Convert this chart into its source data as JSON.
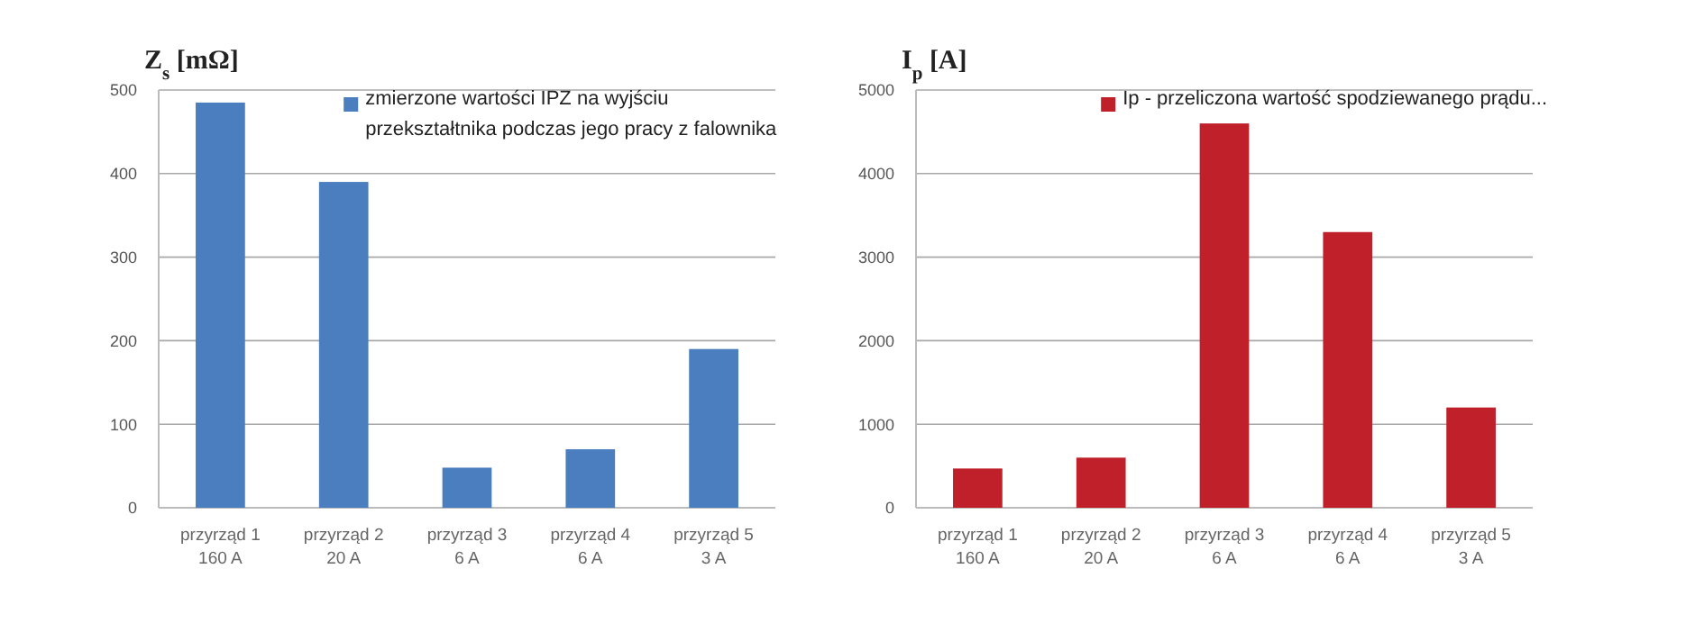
{
  "chart_data": [
    {
      "type": "bar",
      "ylabel": "Z$_{s}$ [mΩ]",
      "categories": [
        "przyrząd 1\n160 A",
        "przyrząd 2\n20 A",
        "przyrząd 3\n6 A",
        "przyrząd 4\n6 A",
        "przyrząd 5\n3 A"
      ],
      "series": [
        {
          "name": "zmierzone wartości IPZ na wyjściu przekształtnika podczas jego pracy z falownika",
          "color": "#4a7ebf",
          "values": [
            485,
            390,
            48,
            70,
            190
          ]
        }
      ],
      "ylim": [
        0,
        500
      ],
      "yticks": [
        0,
        100,
        200,
        300,
        400,
        500
      ],
      "grid": "y",
      "legend": "top right"
    },
    {
      "type": "bar",
      "ylabel": "I$_{p}$ [A]",
      "categories": [
        "przyrząd 1\n160 A",
        "przyrząd 2\n20 A",
        "przyrząd 3\n6 A",
        "przyrząd 4\n6 A",
        "przyrząd 5\n3 A"
      ],
      "series": [
        {
          "name": "Ip - przeliczona wartość spodziewanego prądu...",
          "color": "#c0202a",
          "values": [
            470,
            600,
            4600,
            3300,
            1200
          ]
        }
      ],
      "ylim": [
        0,
        5000
      ],
      "yticks": [
        0,
        1000,
        2000,
        3000,
        4000,
        5000
      ],
      "grid": "y",
      "legend": "top right"
    }
  ]
}
